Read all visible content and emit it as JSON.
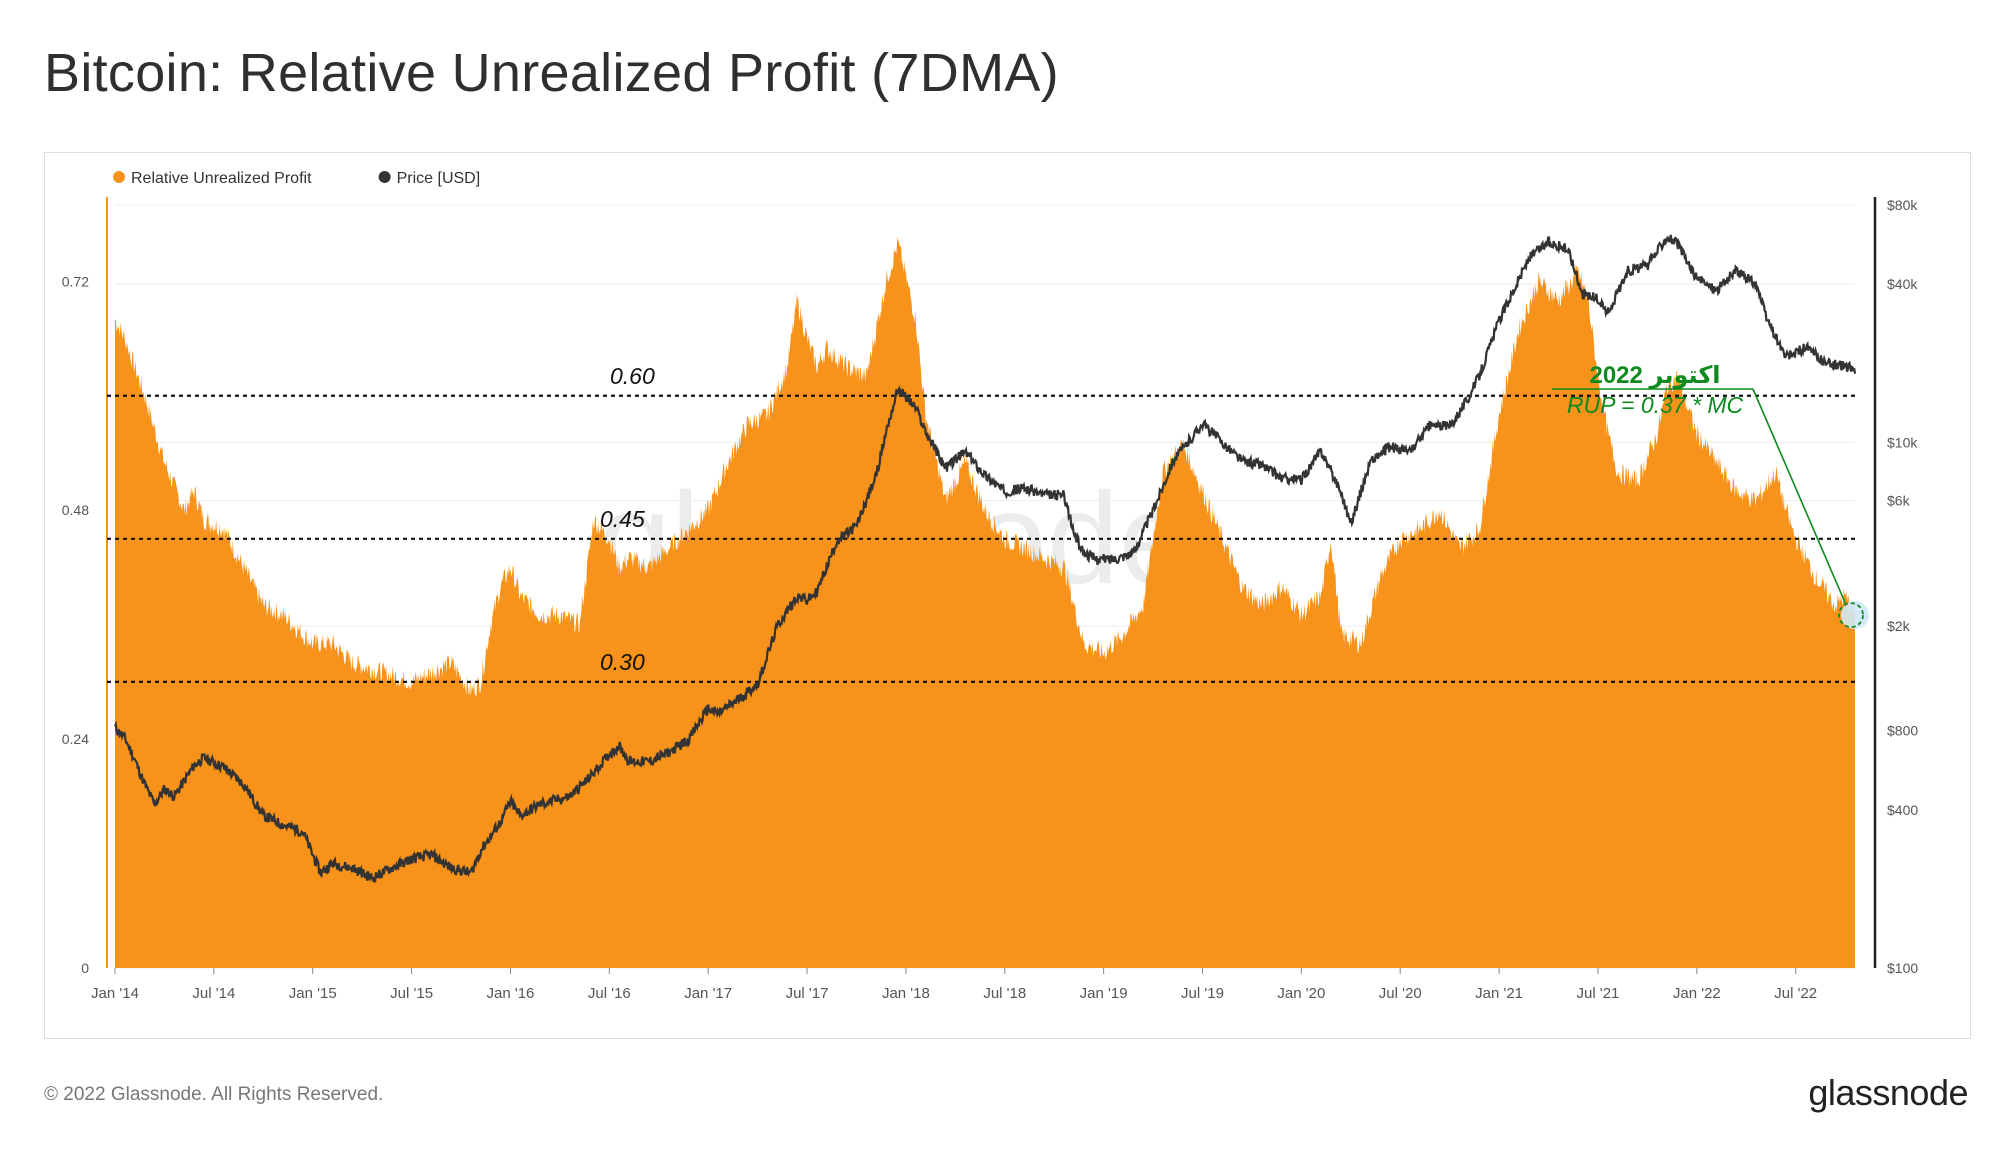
{
  "header": {
    "title": "Bitcoin: Relative Unrealized Profit (7DMA)"
  },
  "footer": {
    "copyright": "© 2022 Glassnode. All Rights Reserved.",
    "brand": "glassnode"
  },
  "watermark": "glassnode",
  "colors": {
    "rup": "#F7931A",
    "price": "#333333",
    "annotation": "#0E8A1E",
    "threshold": "#111111",
    "grid": "#ececec"
  },
  "legend": {
    "placement": "top-left",
    "items": [
      {
        "label": "Relative Unrealized Profit",
        "color": "#F7931A"
      },
      {
        "label": "Price [USD]",
        "color": "#333333"
      }
    ]
  },
  "annotation": {
    "line1": "اكتوبر 2022",
    "line2": "RUP = 0.37 * MC",
    "points_to": "2022-10"
  },
  "chart_data": {
    "type": "area",
    "title": "Bitcoin: Relative Unrealized Profit (7DMA)",
    "x_ticks": [
      "Jan '14",
      "Jul '14",
      "Jan '15",
      "Jul '15",
      "Jan '16",
      "Jul '16",
      "Jan '17",
      "Jul '17",
      "Jan '18",
      "Jul '18",
      "Jan '19",
      "Jul '19",
      "Jan '20",
      "Jul '20",
      "Jan '21",
      "Jul '21",
      "Jan '22",
      "Jul '22"
    ],
    "x_range": [
      2014.0,
      2022.8
    ],
    "left_axis": {
      "ticks": [
        "0",
        "0.24",
        "0.48",
        "0.72"
      ],
      "values": [
        0,
        0.24,
        0.48,
        0.72
      ],
      "range": [
        0,
        0.8
      ]
    },
    "right_axis": {
      "scale": "log",
      "ticks": [
        "$100",
        "$400",
        "$800",
        "$2k",
        "$6k",
        "$10k",
        "$40k",
        "$80k"
      ],
      "values": [
        100,
        400,
        800,
        2000,
        6000,
        10000,
        40000,
        80000
      ],
      "range": [
        100,
        80000
      ]
    },
    "thresholds": [
      {
        "label": "0.60",
        "value": 0.6
      },
      {
        "label": "0.45",
        "value": 0.45
      },
      {
        "label": "0.30",
        "value": 0.3
      }
    ],
    "series": [
      {
        "name": "Relative Unrealized Profit",
        "axis": "left",
        "x": [
          2014.0,
          2014.05,
          2014.15,
          2014.25,
          2014.35,
          2014.4,
          2014.45,
          2014.55,
          2014.65,
          2014.75,
          2014.85,
          2015.0,
          2015.1,
          2015.2,
          2015.35,
          2015.5,
          2015.6,
          2015.7,
          2015.8,
          2015.85,
          2015.9,
          2015.95,
          2016.0,
          2016.05,
          2016.15,
          2016.25,
          2016.35,
          2016.42,
          2016.5,
          2016.55,
          2016.6,
          2016.7,
          2016.8,
          2016.9,
          2017.0,
          2017.1,
          2017.2,
          2017.3,
          2017.4,
          2017.45,
          2017.5,
          2017.55,
          2017.6,
          2017.7,
          2017.8,
          2017.9,
          2017.96,
          2018.05,
          2018.1,
          2018.2,
          2018.3,
          2018.4,
          2018.5,
          2018.6,
          2018.7,
          2018.8,
          2018.85,
          2018.9,
          2019.0,
          2019.1,
          2019.2,
          2019.3,
          2019.4,
          2019.5,
          2019.6,
          2019.7,
          2019.8,
          2019.9,
          2020.0,
          2020.1,
          2020.15,
          2020.2,
          2020.3,
          2020.4,
          2020.5,
          2020.6,
          2020.7,
          2020.8,
          2020.9,
          2021.0,
          2021.1,
          2021.2,
          2021.3,
          2021.4,
          2021.45,
          2021.5,
          2021.55,
          2021.6,
          2021.7,
          2021.8,
          2021.85,
          2021.9,
          2022.0,
          2022.1,
          2022.2,
          2022.3,
          2022.4,
          2022.45,
          2022.5,
          2022.6,
          2022.7,
          2022.75,
          2022.8
        ],
        "y": [
          0.68,
          0.66,
          0.6,
          0.53,
          0.48,
          0.5,
          0.47,
          0.46,
          0.42,
          0.38,
          0.37,
          0.34,
          0.34,
          0.32,
          0.31,
          0.3,
          0.31,
          0.32,
          0.29,
          0.3,
          0.36,
          0.4,
          0.42,
          0.39,
          0.37,
          0.37,
          0.36,
          0.47,
          0.45,
          0.42,
          0.43,
          0.42,
          0.44,
          0.46,
          0.48,
          0.53,
          0.57,
          0.58,
          0.63,
          0.7,
          0.66,
          0.63,
          0.65,
          0.63,
          0.62,
          0.72,
          0.76,
          0.68,
          0.58,
          0.49,
          0.53,
          0.48,
          0.45,
          0.44,
          0.43,
          0.42,
          0.38,
          0.34,
          0.33,
          0.35,
          0.38,
          0.52,
          0.55,
          0.5,
          0.45,
          0.4,
          0.38,
          0.4,
          0.37,
          0.39,
          0.45,
          0.35,
          0.34,
          0.41,
          0.45,
          0.46,
          0.48,
          0.44,
          0.46,
          0.58,
          0.67,
          0.72,
          0.7,
          0.73,
          0.7,
          0.62,
          0.56,
          0.52,
          0.51,
          0.56,
          0.61,
          0.62,
          0.56,
          0.53,
          0.5,
          0.49,
          0.52,
          0.48,
          0.45,
          0.41,
          0.38,
          0.39,
          0.37
        ]
      },
      {
        "name": "Price [USD]",
        "axis": "right",
        "x": [
          2014.0,
          2014.05,
          2014.1,
          2014.15,
          2014.2,
          2014.25,
          2014.3,
          2014.4,
          2014.45,
          2014.55,
          2014.65,
          2014.75,
          2014.85,
          2014.95,
          2015.04,
          2015.1,
          2015.2,
          2015.3,
          2015.4,
          2015.5,
          2015.6,
          2015.7,
          2015.8,
          2015.85,
          2015.95,
          2016.0,
          2016.05,
          2016.15,
          2016.3,
          2016.4,
          2016.5,
          2016.55,
          2016.6,
          2016.7,
          2016.8,
          2016.9,
          2017.0,
          2017.05,
          2017.15,
          2017.25,
          2017.35,
          2017.45,
          2017.5,
          2017.55,
          2017.65,
          2017.75,
          2017.85,
          2017.9,
          2017.96,
          2018.05,
          2018.1,
          2018.2,
          2018.3,
          2018.4,
          2018.5,
          2018.6,
          2018.7,
          2018.8,
          2018.85,
          2018.9,
          2018.96,
          2019.05,
          2019.15,
          2019.25,
          2019.35,
          2019.45,
          2019.5,
          2019.6,
          2019.7,
          2019.8,
          2019.9,
          2020.0,
          2020.1,
          2020.2,
          2020.25,
          2020.35,
          2020.45,
          2020.55,
          2020.65,
          2020.75,
          2020.85,
          2020.9,
          2021.0,
          2021.05,
          2021.15,
          2021.25,
          2021.35,
          2021.42,
          2021.5,
          2021.55,
          2021.65,
          2021.75,
          2021.85,
          2021.9,
          2022.0,
          2022.1,
          2022.2,
          2022.3,
          2022.35,
          2022.45,
          2022.55,
          2022.65,
          2022.75,
          2022.8
        ],
        "y": [
          820,
          750,
          620,
          500,
          420,
          480,
          450,
          590,
          630,
          580,
          500,
          380,
          350,
          330,
          230,
          250,
          240,
          220,
          240,
          260,
          270,
          240,
          230,
          280,
          360,
          430,
          380,
          420,
          450,
          530,
          650,
          700,
          610,
          610,
          660,
          740,
          970,
          930,
          1050,
          1200,
          2000,
          2600,
          2500,
          2700,
          4200,
          4800,
          7500,
          11000,
          16000,
          13500,
          11000,
          8000,
          9200,
          7500,
          6500,
          6700,
          6300,
          6300,
          4500,
          3800,
          3600,
          3600,
          3800,
          5500,
          8500,
          10500,
          11800,
          10000,
          8500,
          8200,
          7300,
          7200,
          9300,
          6500,
          4900,
          8500,
          9600,
          9200,
          11600,
          11500,
          15000,
          18000,
          29000,
          35000,
          50000,
          58000,
          54000,
          37000,
          35000,
          31000,
          45000,
          47000,
          61000,
          57000,
          42000,
          38000,
          45000,
          40000,
          30000,
          21000,
          23000,
          20000,
          19500,
          19000
        ]
      }
    ]
  }
}
